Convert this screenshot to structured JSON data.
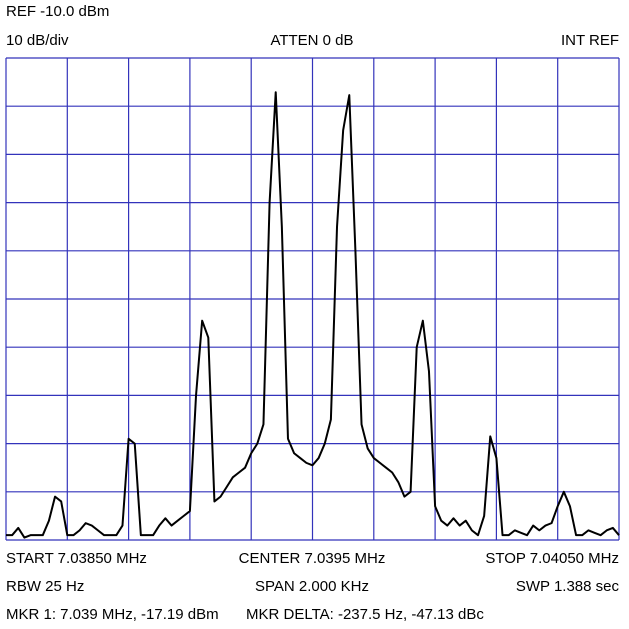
{
  "chart_data": {
    "type": "line",
    "annotations": {
      "ref_level": "REF -10.0 dBm",
      "scale": "10 dB/div",
      "attenuation": "ATTEN 0 dB",
      "reference": "INT REF",
      "start": "START 7.03850 MHz",
      "center": "CENTER 7.0395 MHz",
      "stop": "STOP 7.04050 MHz",
      "rbw": "RBW 25 Hz",
      "span": "SPAN 2.000 KHz",
      "sweep": "SWP 1.388 sec",
      "marker": "MKR 1: 7.039 MHz, -17.19 dBm",
      "marker_delta": "MKR DELTA: -237.5 Hz, -47.13 dBc"
    },
    "xlim": [
      7.0385,
      7.0405
    ],
    "ylim": [
      -110,
      -10
    ],
    "xticks": [
      7.0385,
      7.0387,
      7.0389,
      7.0391,
      7.0393,
      7.0395,
      7.0397,
      7.0399,
      7.0401,
      7.0403,
      7.0405
    ],
    "yticks": [
      -110,
      -100,
      -90,
      -80,
      -70,
      -60,
      -50,
      -40,
      -30,
      -20,
      -10
    ],
    "grid": true,
    "grid_color": "#3333bb",
    "series": [
      {
        "color": "#000000",
        "x": [
          7.0385,
          7.03852,
          7.03854,
          7.03856,
          7.03858,
          7.0386,
          7.03862,
          7.03864,
          7.03866,
          7.03868,
          7.0387,
          7.03872,
          7.03874,
          7.03876,
          7.03878,
          7.0388,
          7.03882,
          7.03884,
          7.03886,
          7.03888,
          7.0389,
          7.03892,
          7.03894,
          7.03896,
          7.03898,
          7.039,
          7.03902,
          7.03904,
          7.03906,
          7.03908,
          7.0391,
          7.03912,
          7.03914,
          7.03916,
          7.03918,
          7.0392,
          7.03922,
          7.03924,
          7.03926,
          7.03928,
          7.0393,
          7.03932,
          7.03934,
          7.03936,
          7.03938,
          7.0394,
          7.03942,
          7.03944,
          7.03946,
          7.03948,
          7.0395,
          7.03952,
          7.03954,
          7.03956,
          7.03958,
          7.0396,
          7.03962,
          7.03964,
          7.03966,
          7.03968,
          7.0397,
          7.03972,
          7.03974,
          7.03976,
          7.03978,
          7.0398,
          7.03982,
          7.03984,
          7.03986,
          7.03988,
          7.0399,
          7.03992,
          7.03994,
          7.03996,
          7.03998,
          7.04,
          7.04002,
          7.04004,
          7.04006,
          7.04008,
          7.0401,
          7.04012,
          7.04014,
          7.04016,
          7.04018,
          7.0402,
          7.04022,
          7.04024,
          7.04026,
          7.04028,
          7.0403,
          7.04032,
          7.04034,
          7.04036,
          7.04038,
          7.0404,
          7.04042,
          7.04044,
          7.04046,
          7.04048,
          7.0405
        ],
        "values": [
          -109,
          -109,
          -107.5,
          -109.5,
          -109,
          -109,
          -109,
          -106,
          -101,
          -102,
          -109,
          -109,
          -108,
          -106.5,
          -107,
          -108,
          -109,
          -109,
          -109,
          -107,
          -89,
          -90,
          -109,
          -109,
          -109,
          -107,
          -105.5,
          -107,
          -106,
          -105,
          -104,
          -80,
          -64.5,
          -68,
          -102,
          -101,
          -99,
          -97,
          -96,
          -95,
          -92,
          -90,
          -86,
          -40,
          -17.1,
          -45,
          -89,
          -92,
          -93,
          -94,
          -94.5,
          -93,
          -90,
          -85,
          -45,
          -25,
          -17.7,
          -50,
          -86,
          -91,
          -93,
          -94,
          -95,
          -96,
          -98,
          -101,
          -100,
          -70,
          -64.5,
          -75,
          -103,
          -106,
          -107,
          -105.5,
          -107,
          -106,
          -108,
          -109,
          -105,
          -88.5,
          -93,
          -109,
          -109,
          -108,
          -108.5,
          -109,
          -107,
          -108,
          -107,
          -106.5,
          -103,
          -100,
          -103,
          -109,
          -109,
          -108,
          -108.5,
          -109,
          -108,
          -107.5,
          -109
        ]
      }
    ]
  }
}
